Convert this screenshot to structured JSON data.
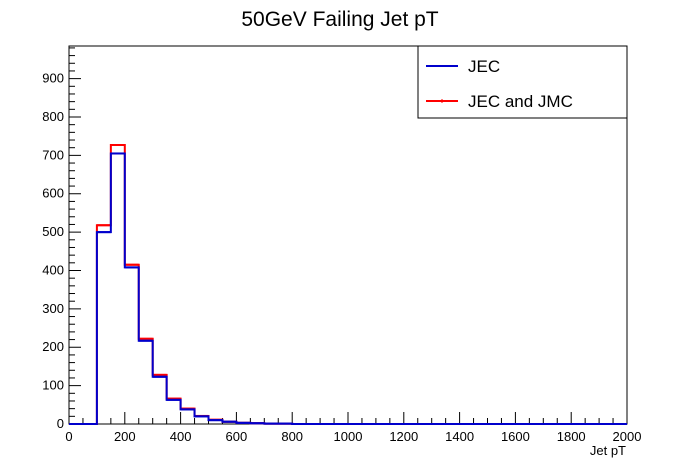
{
  "chart_data": {
    "type": "histogram",
    "title": "50GeV Failing Jet pT",
    "xlabel": "Jet pT",
    "ylabel": "",
    "xlim": [
      0,
      2000
    ],
    "ylim": [
      0,
      985
    ],
    "bin_width": 50,
    "x_ticks": [
      0,
      200,
      400,
      600,
      800,
      1000,
      1200,
      1400,
      1600,
      1800,
      2000
    ],
    "y_ticks": [
      0,
      100,
      200,
      300,
      400,
      500,
      600,
      700,
      800,
      900
    ],
    "legend_position": "top-right",
    "series": [
      {
        "name": "JEC",
        "color": "#0000cc",
        "values": [
          0,
          0,
          500,
          705,
          408,
          217,
          123,
          63,
          38,
          20,
          10,
          6,
          3,
          2,
          1,
          1,
          0,
          0,
          0,
          0,
          0,
          0,
          0,
          0,
          0,
          0,
          0,
          0,
          0,
          0,
          0,
          0,
          0,
          0,
          0,
          0,
          0,
          0,
          0,
          0
        ]
      },
      {
        "name": "JEC and JMC",
        "color": "#ff0000",
        "values": [
          0,
          0,
          518,
          727,
          415,
          222,
          128,
          66,
          40,
          21,
          11,
          6,
          3,
          2,
          1,
          1,
          0,
          0,
          0,
          0,
          0,
          0,
          0,
          0,
          0,
          0,
          0,
          0,
          0,
          0,
          0,
          0,
          0,
          0,
          0,
          0,
          0,
          0,
          0,
          0
        ]
      }
    ]
  }
}
